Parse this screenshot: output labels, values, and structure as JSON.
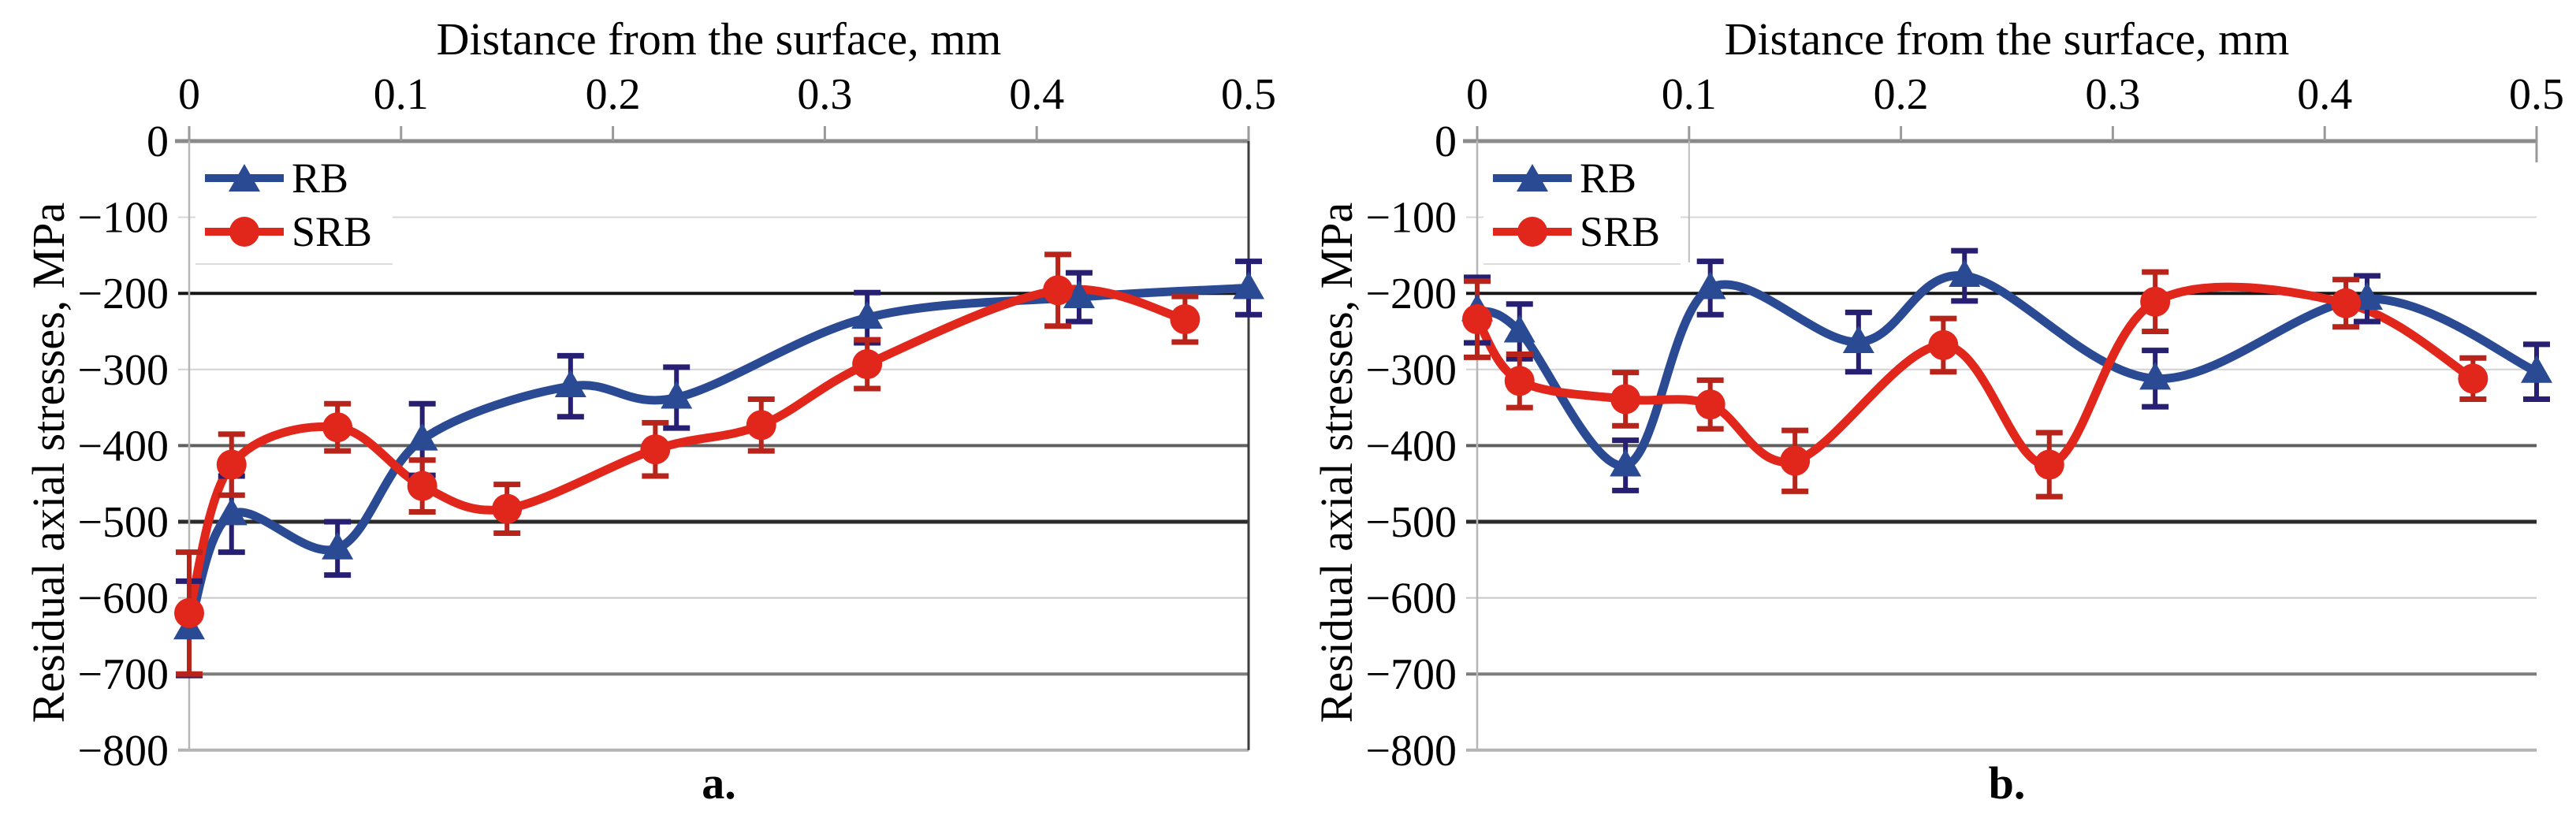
{
  "chart_data": [
    {
      "id": "a",
      "type": "line",
      "caption": "a.",
      "x_title": "Distance from the surface, mm",
      "y_title": "Residual axial stresses, MPa",
      "xlim": [
        0,
        0.5
      ],
      "ylim": [
        0,
        -800
      ],
      "x_ticks": {
        "values": [
          0,
          0.1,
          0.2,
          0.3,
          0.4,
          0.5
        ],
        "labels": [
          "0",
          "0.1",
          "0.2",
          "0.3",
          "0.4",
          "0.5"
        ]
      },
      "y_ticks": {
        "values": [
          0,
          -100,
          -200,
          -300,
          -400,
          -500,
          -600,
          -700,
          -800
        ],
        "labels": [
          "0",
          "−100",
          "−200",
          "−300",
          "−400",
          "−500",
          "−600",
          "−700",
          "−800"
        ]
      },
      "grid": "horizontal",
      "legend_position": "top-left",
      "layout": {
        "right_border": true,
        "legend_right_border_at_x": null,
        "x_end_tick": false
      },
      "series": [
        {
          "name": "RB",
          "marker": "triangle",
          "color": "#2B4A94",
          "error_color": "#261F72",
          "x": [
            0,
            0.02,
            0.07,
            0.11,
            0.18,
            0.23,
            0.32,
            0.42,
            0.5
          ],
          "y": [
            -640,
            -490,
            -535,
            -392,
            -322,
            -337,
            -232,
            -205,
            -193
          ],
          "err": [
            62,
            50,
            35,
            47,
            40,
            40,
            33,
            32,
            35
          ]
        },
        {
          "name": "SRB",
          "marker": "circle",
          "color": "#E1261C",
          "error_color": "#B8231A",
          "x": [
            0,
            0.02,
            0.07,
            0.11,
            0.15,
            0.22,
            0.27,
            0.32,
            0.41,
            0.47
          ],
          "y": [
            -620,
            -425,
            -376,
            -453,
            -483,
            -405,
            -373,
            -293,
            -196,
            -234
          ],
          "err": [
            80,
            40,
            31,
            34,
            32,
            35,
            34,
            32,
            47,
            30
          ]
        }
      ]
    },
    {
      "id": "b",
      "type": "line",
      "caption": "b.",
      "x_title": "Distance from the surface, mm",
      "y_title": "Residual axial stresses, MPa",
      "xlim": [
        0,
        0.5
      ],
      "ylim": [
        0,
        -800
      ],
      "x_ticks": {
        "values": [
          0,
          0.1,
          0.2,
          0.3,
          0.4,
          0.5
        ],
        "labels": [
          "0",
          "0.1",
          "0.2",
          "0.3",
          "0.4",
          "0.5"
        ]
      },
      "y_ticks": {
        "values": [
          0,
          -100,
          -200,
          -300,
          -400,
          -500,
          -600,
          -700,
          -800
        ],
        "labels": [
          "0",
          "−100",
          "−200",
          "−300",
          "−400",
          "−500",
          "−600",
          "−700",
          "−800"
        ]
      },
      "grid": "horizontal",
      "legend_position": "top-left",
      "layout": {
        "right_border": false,
        "legend_right_border_at_x": 0.1,
        "x_end_tick": true
      },
      "series": [
        {
          "name": "RB",
          "marker": "triangle",
          "color": "#2B4A94",
          "error_color": "#261F72",
          "x": [
            0,
            0.02,
            0.07,
            0.11,
            0.18,
            0.23,
            0.32,
            0.42,
            0.5
          ],
          "y": [
            -222,
            -250,
            -426,
            -193,
            -264,
            -177,
            -312,
            -207,
            -303
          ],
          "err": [
            43,
            36,
            33,
            35,
            39,
            33,
            37,
            30,
            36
          ]
        },
        {
          "name": "SRB",
          "marker": "circle",
          "color": "#E1261C",
          "error_color": "#B8231A",
          "x": [
            0,
            0.02,
            0.07,
            0.11,
            0.15,
            0.22,
            0.27,
            0.32,
            0.41,
            0.47
          ],
          "y": [
            -234,
            -315,
            -339,
            -346,
            -420,
            -268,
            -425,
            -211,
            -213,
            -312
          ],
          "err": [
            50,
            35,
            35,
            32,
            40,
            35,
            42,
            39,
            31,
            27
          ]
        }
      ]
    }
  ]
}
